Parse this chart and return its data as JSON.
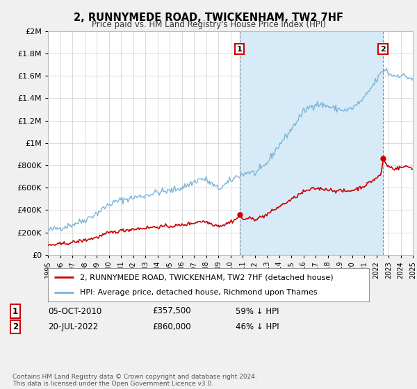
{
  "title_line1": "2, RUNNYMEDE ROAD, TWICKENHAM, TW2 7HF",
  "title_line2": "Price paid vs. HM Land Registry's House Price Index (HPI)",
  "ylim": [
    0,
    2000000
  ],
  "ytick_vals": [
    0,
    200000,
    400000,
    600000,
    800000,
    1000000,
    1200000,
    1400000,
    1600000,
    1800000,
    2000000
  ],
  "hpi_color": "#7ab4d8",
  "price_color": "#cc0000",
  "bg_color": "#f0f0f0",
  "plot_bg": "#ffffff",
  "grid_color": "#cccccc",
  "shade_color": "#d6eaf8",
  "annotation1": {
    "label": "1",
    "x_year": 2010.75,
    "y_price": 357500
  },
  "annotation2": {
    "label": "2",
    "x_year": 2022.55,
    "y_price": 860000
  },
  "legend_line1": "2, RUNNYMEDE ROAD, TWICKENHAM, TW2 7HF (detached house)",
  "legend_line2": "HPI: Average price, detached house, Richmond upon Thames",
  "footer": "Contains HM Land Registry data © Crown copyright and database right 2024.\nThis data is licensed under the Open Government Licence v3.0.",
  "xmin": 1995,
  "xmax": 2025,
  "table_row1": [
    "1",
    "05-OCT-2010",
    "£357,500",
    "59% ↓ HPI"
  ],
  "table_row2": [
    "2",
    "20-JUL-2022",
    "£860,000",
    "46% ↓ HPI"
  ]
}
